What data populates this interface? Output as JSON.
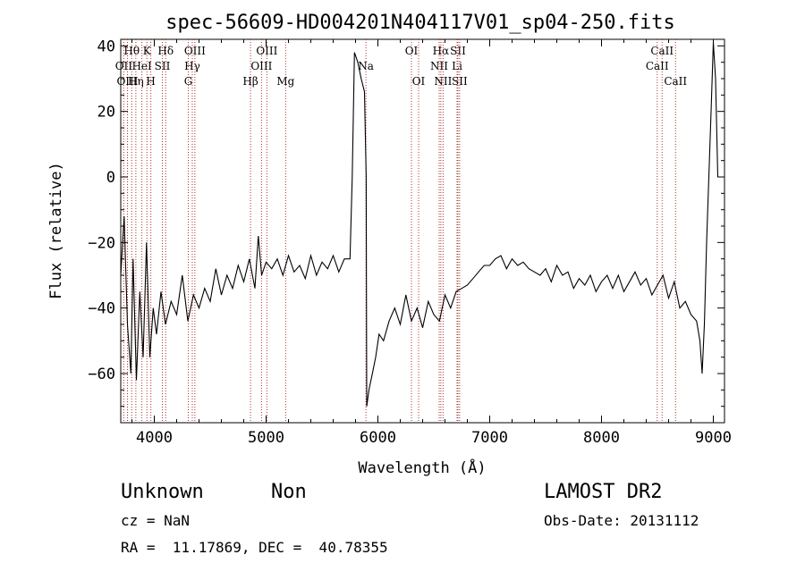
{
  "chart_data": {
    "type": "line",
    "title": "spec-56609-HD004201N404117V01_sp04-250.fits",
    "xlabel": "Wavelength (Å)",
    "ylabel": "Flux (relative)",
    "xlim": [
      3700,
      9100
    ],
    "ylim": [
      -75,
      42
    ],
    "xticks": [
      4000,
      5000,
      6000,
      7000,
      8000,
      9000
    ],
    "xtick_labels": [
      "4000",
      "5000",
      "6000",
      "7000",
      "8000",
      "9000"
    ],
    "yticks": [
      -60,
      -40,
      -20,
      0,
      20,
      40
    ],
    "ytick_labels": [
      "−60",
      "−40",
      "−20",
      "0",
      "20",
      "40"
    ],
    "grid": false,
    "line_color": "#000000",
    "marker_color": "#b03030",
    "series": [
      {
        "x": [
          3700,
          3730,
          3760,
          3790,
          3810,
          3840,
          3870,
          3900,
          3930,
          3960,
          3990,
          4020,
          4060,
          4100,
          4150,
          4200,
          4250,
          4300,
          4350,
          4400,
          4450,
          4500,
          4550,
          4600,
          4650,
          4700,
          4750,
          4800,
          4850,
          4900,
          4930,
          4960,
          5000,
          5050,
          5100,
          5150,
          5200,
          5250,
          5300,
          5350,
          5400,
          5450,
          5500,
          5550,
          5600,
          5650,
          5700,
          5750,
          5770,
          5790,
          5820,
          5850,
          5880,
          5895,
          5900,
          5920,
          5950,
          5980,
          6010,
          6050,
          6100,
          6150,
          6200,
          6250,
          6300,
          6350,
          6400,
          6450,
          6500,
          6550,
          6600,
          6650,
          6700,
          6750,
          6800,
          6850,
          6900,
          6950,
          7000,
          7050,
          7100,
          7150,
          7200,
          7250,
          7300,
          7350,
          7400,
          7450,
          7500,
          7550,
          7600,
          7650,
          7700,
          7750,
          7800,
          7850,
          7900,
          7950,
          8000,
          8050,
          8100,
          8150,
          8200,
          8250,
          8300,
          8350,
          8400,
          8450,
          8500,
          8550,
          8600,
          8650,
          8700,
          8750,
          8800,
          8850,
          8880,
          8900,
          8920,
          8940,
          8960,
          8980,
          9000,
          9020,
          9040
        ],
        "y": [
          -30,
          -12,
          -45,
          -60,
          -25,
          -62,
          -35,
          -55,
          -20,
          -55,
          -40,
          -48,
          -35,
          -45,
          -38,
          -42,
          -30,
          -44,
          -36,
          -40,
          -34,
          -38,
          -28,
          -36,
          -30,
          -34,
          -27,
          -32,
          -25,
          -34,
          -18,
          -30,
          -26,
          -28,
          -25,
          -30,
          -24,
          -29,
          -27,
          -31,
          -24,
          -30,
          -26,
          -28,
          -24,
          -29,
          -25,
          -25,
          0,
          38,
          35,
          30,
          26,
          0,
          -70,
          -65,
          -60,
          -55,
          -48,
          -50,
          -44,
          -40,
          -45,
          -36,
          -44,
          -40,
          -46,
          -38,
          -42,
          -44,
          -36,
          -40,
          -35,
          -34,
          -33,
          -31,
          -29,
          -27,
          -27,
          -25,
          -24,
          -28,
          -25,
          -27,
          -26,
          -28,
          -29,
          -30,
          -28,
          -32,
          -27,
          -30,
          -29,
          -34,
          -31,
          -33,
          -30,
          -35,
          -32,
          -30,
          -34,
          -30,
          -35,
          -32,
          -29,
          -33,
          -31,
          -36,
          -33,
          -30,
          -37,
          -32,
          -40,
          -38,
          -42,
          -44,
          -50,
          -60,
          -45,
          -20,
          0,
          20,
          41,
          30,
          0
        ]
      }
    ],
    "line_markers": [
      {
        "label": "Hθ",
        "x": 3798,
        "row": 1
      },
      {
        "label": "OII",
        "x": 3727,
        "row": 2
      },
      {
        "label": "OIII",
        "x": 3760,
        "row": 3
      },
      {
        "label": "Hη",
        "x": 3835,
        "row": 3
      },
      {
        "label": "K",
        "x": 3934,
        "row": 1
      },
      {
        "label": "HeI",
        "x": 3889,
        "row": 2
      },
      {
        "label": "SII",
        "x": 4072,
        "row": 2
      },
      {
        "label": "H",
        "x": 3969,
        "row": 3
      },
      {
        "label": "Hδ",
        "x": 4102,
        "row": 1
      },
      {
        "label": "OIII",
        "x": 4363,
        "row": 1
      },
      {
        "label": "Hγ",
        "x": 4340,
        "row": 2
      },
      {
        "label": "G",
        "x": 4304,
        "row": 3
      },
      {
        "label": "Hβ",
        "x": 4861,
        "row": 3
      },
      {
        "label": "OIII",
        "x": 5007,
        "row": 1
      },
      {
        "label": "OIII",
        "x": 4959,
        "row": 2
      },
      {
        "label": "Mg",
        "x": 5175,
        "row": 3
      },
      {
        "label": "Na",
        "x": 5893,
        "row": 2
      },
      {
        "label": "OI",
        "x": 6300,
        "row": 1
      },
      {
        "label": "OI",
        "x": 6364,
        "row": 3
      },
      {
        "label": "Hα",
        "x": 6563,
        "row": 1
      },
      {
        "label": "SII",
        "x": 6716,
        "row": 1
      },
      {
        "label": "NII",
        "x": 6548,
        "row": 2
      },
      {
        "label": "Li",
        "x": 6708,
        "row": 2
      },
      {
        "label": "NII",
        "x": 6583,
        "row": 3
      },
      {
        "label": "SII",
        "x": 6731,
        "row": 3
      },
      {
        "label": "CaII",
        "x": 8542,
        "row": 1
      },
      {
        "label": "CaII",
        "x": 8498,
        "row": 2
      },
      {
        "label": "CaII",
        "x": 8662,
        "row": 3
      }
    ]
  },
  "info": {
    "object_class": "Unknown",
    "subclass": "Non",
    "survey": "LAMOST DR2",
    "cz": "cz = NaN",
    "obs_date": "Obs-Date: 20131112",
    "coords": "RA =  11.17869, DEC =  40.78355"
  }
}
